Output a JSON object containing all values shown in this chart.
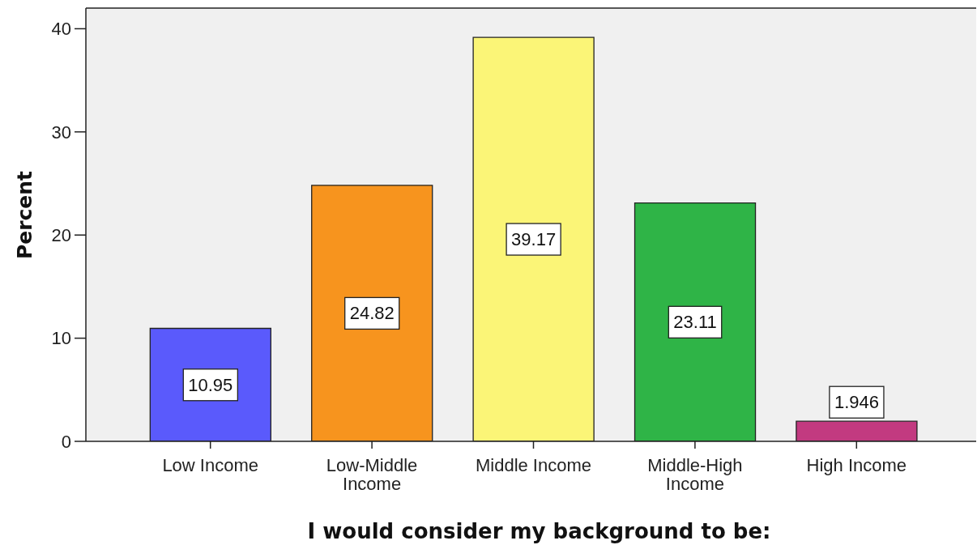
{
  "chart_data": {
    "type": "bar",
    "xlabel": "I would consider my background to be:",
    "ylabel": "Percent",
    "categories": [
      "Low Income",
      "Low-Middle Income",
      "Middle Income",
      "Middle-High Income",
      "High Income"
    ],
    "values": [
      10.95,
      24.82,
      39.17,
      23.11,
      1.946
    ],
    "colors": [
      "#5a5afc",
      "#f7941e",
      "#fbf577",
      "#2fb447",
      "#c23a80"
    ],
    "ylim": [
      0,
      42
    ],
    "yticks": [
      0,
      10,
      20,
      30,
      40
    ],
    "data_labels": true
  }
}
